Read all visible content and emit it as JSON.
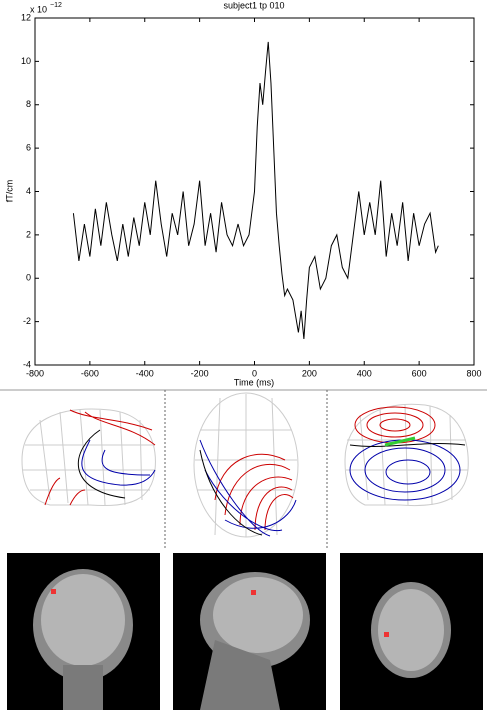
{
  "chart_data": {
    "type": "line",
    "title": "subject1 tp 010",
    "xlabel": "Time (ms)",
    "ylabel": "fT/cm",
    "y_scale_label": "x 10",
    "y_scale_exponent": "−12",
    "x": [
      -660,
      -640,
      -620,
      -600,
      -580,
      -560,
      -540,
      -520,
      -500,
      -480,
      -460,
      -440,
      -420,
      -400,
      -380,
      -360,
      -340,
      -320,
      -300,
      -280,
      -260,
      -240,
      -220,
      -200,
      -180,
      -160,
      -140,
      -120,
      -100,
      -80,
      -60,
      -40,
      -20,
      0,
      10,
      20,
      30,
      40,
      50,
      60,
      70,
      80,
      90,
      100,
      110,
      120,
      140,
      160,
      170,
      180,
      190,
      200,
      220,
      240,
      260,
      280,
      300,
      320,
      340,
      360,
      380,
      400,
      420,
      440,
      460,
      480,
      500,
      520,
      540,
      560,
      580,
      600,
      620,
      640,
      660,
      670
    ],
    "values": [
      3.0,
      0.8,
      2.5,
      1.0,
      3.2,
      1.5,
      3.5,
      2.0,
      0.8,
      2.5,
      1.0,
      2.8,
      1.5,
      3.5,
      2.0,
      4.5,
      2.5,
      1.0,
      3.0,
      2.0,
      4.0,
      1.5,
      2.5,
      4.5,
      1.5,
      3.0,
      1.2,
      3.5,
      2.0,
      1.5,
      2.5,
      1.5,
      2.0,
      4.0,
      7.0,
      9.0,
      8.0,
      9.5,
      10.9,
      9.0,
      6.0,
      3.0,
      1.5,
      0.2,
      -0.8,
      -0.5,
      -1.0,
      -2.5,
      -1.5,
      -2.8,
      -1.0,
      0.5,
      1.0,
      -0.5,
      0.0,
      1.5,
      2.0,
      0.5,
      0.0,
      2.0,
      4.0,
      2.0,
      3.5,
      2.0,
      4.5,
      1.0,
      3.0,
      1.5,
      3.5,
      0.8,
      3.0,
      1.5,
      2.5,
      3.0,
      1.2,
      1.5
    ],
    "color": "#000000",
    "xlim": [
      -800,
      800
    ],
    "xticks": [
      -800,
      -600,
      -400,
      -200,
      0,
      200,
      400,
      600,
      800
    ],
    "ylim": [
      -4,
      12
    ],
    "yticks": [
      -4,
      -2,
      0,
      2,
      4,
      6,
      8,
      10,
      12
    ]
  }
}
